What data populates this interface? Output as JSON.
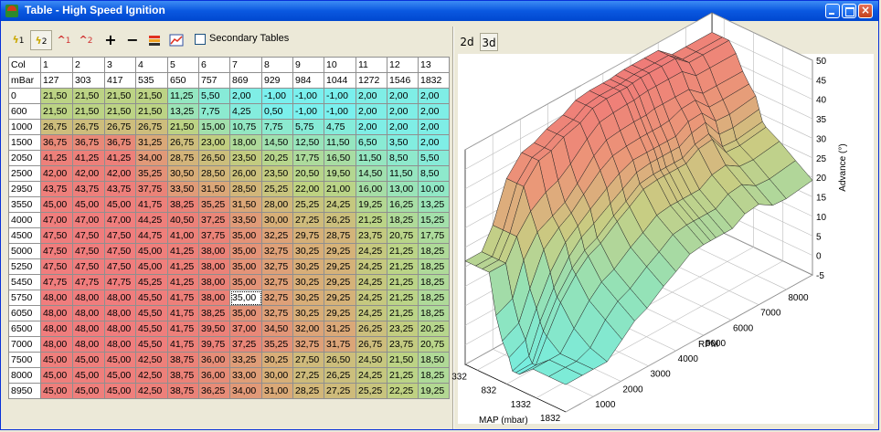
{
  "window": {
    "title": "Table - High Speed Ignition"
  },
  "toolbar": {
    "secondary_tables_label": "Secondary Tables",
    "secondary_tables_checked": false,
    "tools": [
      {
        "name": "lightning-1-icon",
        "label": "1"
      },
      {
        "name": "lightning-2-icon",
        "label": "2"
      },
      {
        "name": "spark-1-icon",
        "label": "1"
      },
      {
        "name": "spark-2-icon",
        "label": "2"
      },
      {
        "name": "plus-icon",
        "label": "+"
      },
      {
        "name": "minus-icon",
        "label": "−"
      },
      {
        "name": "fill-icon",
        "label": ""
      },
      {
        "name": "graph-icon",
        "label": ""
      }
    ]
  },
  "view_tabs": {
    "tab_2d": "2d",
    "tab_3d": "3d",
    "active": "3d"
  },
  "table": {
    "row_header_label": "Col",
    "row_unit_label": "mBar",
    "columns": [
      "1",
      "2",
      "3",
      "4",
      "5",
      "6",
      "7",
      "8",
      "9",
      "10",
      "11",
      "12",
      "13"
    ],
    "map_values": [
      "127",
      "303",
      "417",
      "535",
      "650",
      "757",
      "869",
      "929",
      "984",
      "1044",
      "1272",
      "1546",
      "1832"
    ],
    "rpm_values": [
      "0",
      "600",
      "1000",
      "1500",
      "2050",
      "2500",
      "2950",
      "3550",
      "4000",
      "4500",
      "5000",
      "5250",
      "5450",
      "5750",
      "6050",
      "6500",
      "7000",
      "7500",
      "8000",
      "8950"
    ],
    "cells": [
      [
        "21,50",
        "21,50",
        "21,50",
        "21,50",
        "11,25",
        "5,50",
        "2,00",
        "-1,00",
        "-1,00",
        "-1,00",
        "2,00",
        "2,00",
        "2,00"
      ],
      [
        "21,50",
        "21,50",
        "21,50",
        "21,50",
        "13,25",
        "7,75",
        "4,25",
        "0,50",
        "-1,00",
        "-1,00",
        "2,00",
        "2,00",
        "2,00"
      ],
      [
        "26,75",
        "26,75",
        "26,75",
        "26,75",
        "21,50",
        "15,00",
        "10,75",
        "7,75",
        "5,75",
        "4,75",
        "2,00",
        "2,00",
        "2,00"
      ],
      [
        "36,75",
        "36,75",
        "36,75",
        "31,25",
        "26,75",
        "23,00",
        "18,00",
        "14,50",
        "12,50",
        "11,50",
        "6,50",
        "3,50",
        "2,00"
      ],
      [
        "41,25",
        "41,25",
        "41,25",
        "34,00",
        "28,75",
        "26,50",
        "23,50",
        "20,25",
        "17,75",
        "16,50",
        "11,50",
        "8,50",
        "5,50"
      ],
      [
        "42,00",
        "42,00",
        "42,00",
        "35,25",
        "30,50",
        "28,50",
        "26,00",
        "23,50",
        "20,50",
        "19,50",
        "14,50",
        "11,50",
        "8,50"
      ],
      [
        "43,75",
        "43,75",
        "43,75",
        "37,75",
        "33,50",
        "31,50",
        "28,50",
        "25,25",
        "22,00",
        "21,00",
        "16,00",
        "13,00",
        "10,00"
      ],
      [
        "45,00",
        "45,00",
        "45,00",
        "41,75",
        "38,25",
        "35,25",
        "31,50",
        "28,00",
        "25,25",
        "24,25",
        "19,25",
        "16,25",
        "13,25"
      ],
      [
        "47,00",
        "47,00",
        "47,00",
        "44,25",
        "40,50",
        "37,25",
        "33,50",
        "30,00",
        "27,25",
        "26,25",
        "21,25",
        "18,25",
        "15,25"
      ],
      [
        "47,50",
        "47,50",
        "47,50",
        "44,75",
        "41,00",
        "37,75",
        "35,00",
        "32,25",
        "29,75",
        "28,75",
        "23,75",
        "20,75",
        "17,75"
      ],
      [
        "47,50",
        "47,50",
        "47,50",
        "45,00",
        "41,25",
        "38,00",
        "35,00",
        "32,75",
        "30,25",
        "29,25",
        "24,25",
        "21,25",
        "18,25"
      ],
      [
        "47,50",
        "47,50",
        "47,50",
        "45,00",
        "41,25",
        "38,00",
        "35,00",
        "32,75",
        "30,25",
        "29,25",
        "24,25",
        "21,25",
        "18,25"
      ],
      [
        "47,75",
        "47,75",
        "47,75",
        "45,25",
        "41,25",
        "38,00",
        "35,00",
        "32,75",
        "30,25",
        "29,25",
        "24,25",
        "21,25",
        "18,25"
      ],
      [
        "48,00",
        "48,00",
        "48,00",
        "45,50",
        "41,75",
        "38,00",
        "35,00",
        "32,75",
        "30,25",
        "29,25",
        "24,25",
        "21,25",
        "18,25"
      ],
      [
        "48,00",
        "48,00",
        "48,00",
        "45,50",
        "41,75",
        "38,25",
        "35,00",
        "32,75",
        "30,25",
        "29,25",
        "24,25",
        "21,25",
        "18,25"
      ],
      [
        "48,00",
        "48,00",
        "48,00",
        "45,50",
        "41,75",
        "39,50",
        "37,00",
        "34,50",
        "32,00",
        "31,25",
        "26,25",
        "23,25",
        "20,25"
      ],
      [
        "48,00",
        "48,00",
        "48,00",
        "45,50",
        "41,75",
        "39,75",
        "37,25",
        "35,25",
        "32,75",
        "31,75",
        "26,75",
        "23,75",
        "20,75"
      ],
      [
        "45,00",
        "45,00",
        "45,00",
        "42,50",
        "38,75",
        "36,00",
        "33,25",
        "30,25",
        "27,50",
        "26,50",
        "24,50",
        "21,50",
        "18,50"
      ],
      [
        "45,00",
        "45,00",
        "45,00",
        "42,50",
        "38,75",
        "36,00",
        "33,00",
        "30,00",
        "27,25",
        "26,25",
        "24,25",
        "21,25",
        "18,25"
      ],
      [
        "45,00",
        "45,00",
        "45,00",
        "42,50",
        "38,75",
        "36,25",
        "34,00",
        "31,00",
        "28,25",
        "27,25",
        "25,25",
        "22,25",
        "19,25"
      ]
    ],
    "selected_cell": {
      "row": 13,
      "col": 6
    }
  },
  "chart_data": {
    "type": "surface3d",
    "x_label": "MAP (mbar)",
    "y_label": "RPM",
    "z_label": "Advance (°)",
    "x_ticks": [
      "332",
      "832",
      "1332",
      "1832"
    ],
    "y_ticks": [
      "1000",
      "2000",
      "3000",
      "4000",
      "5000",
      "6000",
      "7000",
      "8000"
    ],
    "z_ticks": [
      "-5",
      "0",
      "5",
      "10",
      "15",
      "20",
      "25",
      "30",
      "35",
      "40",
      "45",
      "50"
    ],
    "zlim": [
      -5,
      50
    ],
    "colors": {
      "low": "#80f0f0",
      "mid": "#c0d890",
      "high": "#f08080"
    },
    "grid": true
  }
}
